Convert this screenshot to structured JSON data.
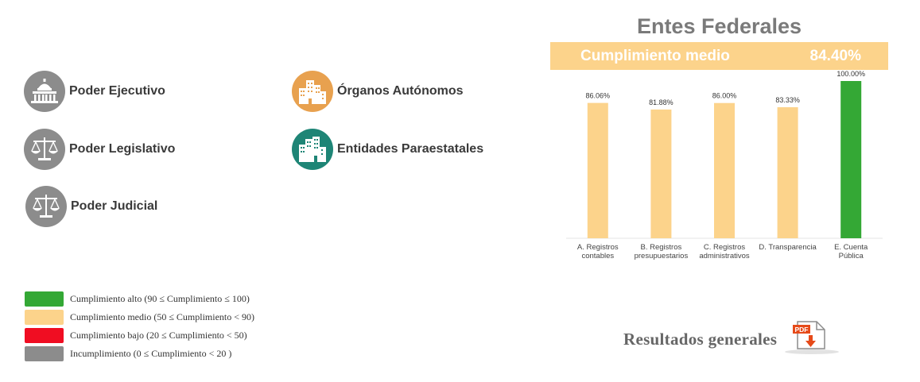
{
  "categories": [
    {
      "key": "ejecutivo",
      "label": "Poder Ejecutivo",
      "icon": "capitol-icon",
      "color": "#8c8c8c"
    },
    {
      "key": "legislativo",
      "label": "Poder Legislativo",
      "icon": "scales-icon",
      "color": "#8c8c8c"
    },
    {
      "key": "judicial",
      "label": "Poder Judicial",
      "icon": "scales-icon",
      "color": "#8c8c8c"
    },
    {
      "key": "autonomos",
      "label": "Órganos Autónomos",
      "icon": "buildings-icon",
      "color": "#e8a14f"
    },
    {
      "key": "paraestatales",
      "label": "Entidades Paraestatales",
      "icon": "buildings-icon",
      "color": "#1e8576"
    }
  ],
  "legend": [
    {
      "label": "Cumplimiento alto (90 ≤ Cumplimiento ≤ 100)",
      "color": "#34a835"
    },
    {
      "label": "Cumplimiento medio (50 ≤ Cumplimiento  < 90)",
      "color": "#fcd38b"
    },
    {
      "label": "Cumplimiento bajo (20 ≤ Cumplimiento < 50)",
      "color": "#f00d22"
    },
    {
      "label": "Incumplimiento (0 ≤ Cumplimiento < 20 )",
      "color": "#8c8c8c"
    }
  ],
  "panel": {
    "title": "Entes Federales",
    "banner_label": "Cumplimiento medio",
    "banner_value": "84.40%",
    "banner_color": "#fcd38b"
  },
  "chart_data": {
    "type": "bar",
    "categories": [
      [
        "A. Registros",
        "contables"
      ],
      [
        "B. Registros",
        "presupuestarios"
      ],
      [
        "C. Registros",
        "administrativos"
      ],
      [
        "D. Transparencia"
      ],
      [
        "E. Cuenta",
        "Pública"
      ]
    ],
    "values": [
      86.06,
      81.88,
      86.0,
      83.33,
      100.0
    ],
    "data_labels": [
      "86.06%",
      "81.88%",
      "86.00%",
      "83.33%",
      "100.00%"
    ],
    "colors": [
      "#fcd38b",
      "#fcd38b",
      "#fcd38b",
      "#fcd38b",
      "#34a835"
    ],
    "title": "",
    "xlabel": "",
    "ylabel": "",
    "ylim": [
      0,
      100
    ],
    "grid": false
  },
  "results": {
    "label": "Resultados generales",
    "pdf_text": "PDF"
  }
}
